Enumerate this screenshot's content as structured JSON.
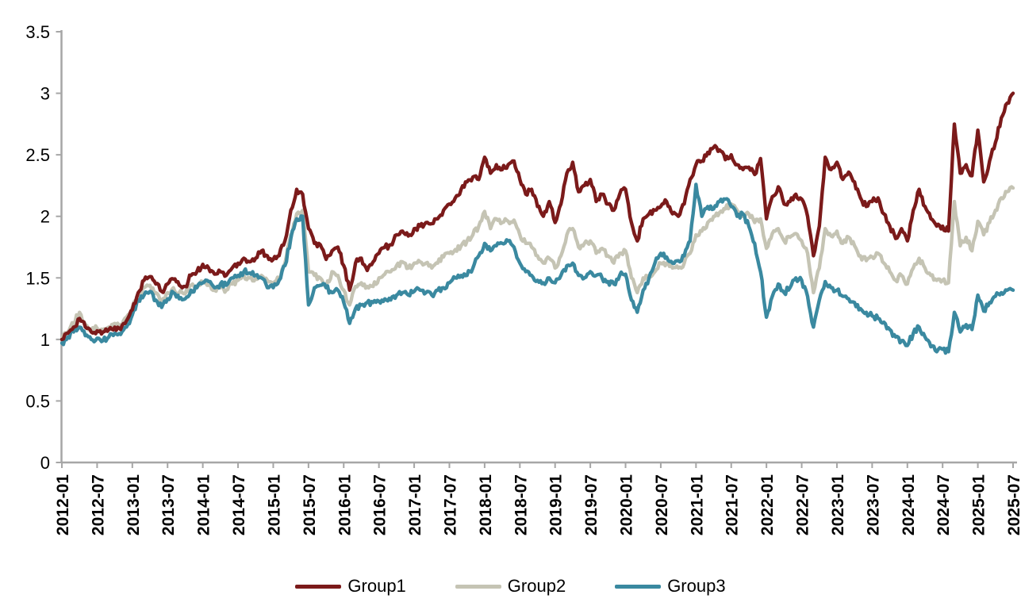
{
  "chart_data": {
    "type": "line",
    "title": "",
    "x_start": "2012-01",
    "x_step_months": 1,
    "x_end": "2025-07",
    "tick_labels": [
      "2012-01",
      "2012-07",
      "2013-01",
      "2013-07",
      "2014-01",
      "2014-07",
      "2015-01",
      "2015-07",
      "2016-01",
      "2016-07",
      "2017-01",
      "2017-07",
      "2018-01",
      "2018-07",
      "2019-01",
      "2019-07",
      "2020-01",
      "2020-07",
      "2021-01",
      "2021-07",
      "2022-01",
      "2022-07",
      "2023-01",
      "2023-07",
      "2024-01",
      "2024-07",
      "2025-01",
      "2025-07"
    ],
    "ytick_labels": [
      "0",
      "0.5",
      "1",
      "1.5",
      "2",
      "2.5",
      "3",
      "3.5"
    ],
    "ytick_values": [
      0,
      0.5,
      1,
      1.5,
      2,
      2.5,
      3,
      3.5
    ],
    "ylim": [
      0,
      3.5
    ],
    "grid": false,
    "legend_position": "bottom",
    "axis_color": "#a6a6a6",
    "text_color": "#000000",
    "background_color": "#ffffff",
    "series": [
      {
        "name": "Group1",
        "color": "#7B1A1A",
        "values": [
          1.0,
          1.05,
          1.1,
          1.17,
          1.1,
          1.06,
          1.07,
          1.06,
          1.08,
          1.1,
          1.08,
          1.15,
          1.24,
          1.38,
          1.48,
          1.51,
          1.45,
          1.39,
          1.45,
          1.49,
          1.44,
          1.43,
          1.52,
          1.55,
          1.61,
          1.58,
          1.53,
          1.55,
          1.52,
          1.58,
          1.62,
          1.66,
          1.63,
          1.66,
          1.72,
          1.68,
          1.65,
          1.68,
          1.8,
          2.05,
          2.22,
          2.18,
          1.9,
          1.78,
          1.77,
          1.65,
          1.72,
          1.75,
          1.6,
          1.4,
          1.62,
          1.66,
          1.56,
          1.63,
          1.7,
          1.75,
          1.77,
          1.85,
          1.88,
          1.84,
          1.9,
          1.92,
          1.95,
          1.94,
          1.98,
          2.05,
          2.1,
          2.15,
          2.22,
          2.28,
          2.32,
          2.3,
          2.48,
          2.35,
          2.42,
          2.38,
          2.42,
          2.45,
          2.3,
          2.18,
          2.22,
          2.08,
          2.0,
          2.12,
          1.95,
          2.1,
          2.35,
          2.44,
          2.2,
          2.25,
          2.3,
          2.12,
          2.18,
          2.1,
          2.05,
          2.18,
          2.22,
          1.95,
          1.8,
          1.98,
          2.02,
          2.05,
          2.08,
          2.12,
          2.02,
          2.0,
          2.1,
          2.3,
          2.42,
          2.45,
          2.52,
          2.56,
          2.54,
          2.46,
          2.5,
          2.42,
          2.38,
          2.4,
          2.34,
          2.47,
          1.98,
          2.16,
          2.24,
          2.1,
          2.12,
          2.18,
          2.14,
          2.0,
          1.68,
          1.92,
          2.48,
          2.38,
          2.44,
          2.3,
          2.36,
          2.28,
          2.15,
          2.08,
          2.12,
          2.15,
          2.02,
          1.92,
          1.82,
          1.9,
          1.8,
          2.05,
          2.22,
          2.08,
          1.98,
          1.92,
          1.92,
          1.88,
          2.75,
          2.35,
          2.42,
          2.33,
          2.7,
          2.28,
          2.45,
          2.6,
          2.8,
          2.92,
          3.0
        ]
      },
      {
        "name": "Group2",
        "color": "#C5C4B4",
        "values": [
          1.0,
          1.06,
          1.13,
          1.22,
          1.12,
          1.08,
          1.09,
          1.08,
          1.1,
          1.13,
          1.12,
          1.18,
          1.26,
          1.36,
          1.42,
          1.44,
          1.38,
          1.32,
          1.38,
          1.42,
          1.38,
          1.37,
          1.44,
          1.42,
          1.47,
          1.44,
          1.4,
          1.42,
          1.4,
          1.45,
          1.48,
          1.52,
          1.5,
          1.5,
          1.52,
          1.48,
          1.45,
          1.5,
          1.62,
          1.85,
          2.02,
          2.05,
          1.55,
          1.52,
          1.5,
          1.42,
          1.55,
          1.52,
          1.4,
          1.28,
          1.43,
          1.46,
          1.43,
          1.43,
          1.5,
          1.53,
          1.55,
          1.6,
          1.63,
          1.58,
          1.62,
          1.63,
          1.62,
          1.58,
          1.62,
          1.67,
          1.7,
          1.73,
          1.76,
          1.8,
          1.85,
          1.92,
          2.04,
          1.9,
          1.98,
          1.95,
          1.96,
          1.97,
          1.85,
          1.78,
          1.75,
          1.68,
          1.62,
          1.66,
          1.58,
          1.68,
          1.85,
          1.9,
          1.75,
          1.78,
          1.8,
          1.7,
          1.74,
          1.68,
          1.62,
          1.7,
          1.72,
          1.5,
          1.38,
          1.5,
          1.52,
          1.55,
          1.62,
          1.62,
          1.58,
          1.58,
          1.62,
          1.7,
          1.85,
          1.88,
          1.95,
          2.0,
          2.03,
          2.06,
          2.1,
          2.05,
          2.0,
          2.02,
          1.95,
          1.98,
          1.74,
          1.86,
          1.9,
          1.8,
          1.83,
          1.86,
          1.8,
          1.7,
          1.38,
          1.58,
          1.9,
          1.84,
          1.88,
          1.78,
          1.83,
          1.76,
          1.68,
          1.64,
          1.67,
          1.7,
          1.62,
          1.55,
          1.48,
          1.52,
          1.45,
          1.58,
          1.66,
          1.58,
          1.52,
          1.48,
          1.48,
          1.46,
          2.12,
          1.76,
          1.83,
          1.72,
          1.96,
          1.85,
          1.95,
          2.05,
          2.15,
          2.2,
          2.23
        ]
      },
      {
        "name": "Group3",
        "color": "#3A89A0",
        "values": [
          0.97,
          1.02,
          1.06,
          1.1,
          1.03,
          1.0,
          1.01,
          0.99,
          1.02,
          1.05,
          1.04,
          1.1,
          1.2,
          1.32,
          1.36,
          1.39,
          1.32,
          1.26,
          1.33,
          1.38,
          1.33,
          1.33,
          1.4,
          1.42,
          1.46,
          1.47,
          1.42,
          1.45,
          1.44,
          1.5,
          1.52,
          1.55,
          1.54,
          1.52,
          1.5,
          1.42,
          1.42,
          1.48,
          1.6,
          1.82,
          1.98,
          2.0,
          1.28,
          1.42,
          1.44,
          1.42,
          1.38,
          1.4,
          1.3,
          1.13,
          1.25,
          1.28,
          1.3,
          1.3,
          1.31,
          1.33,
          1.32,
          1.36,
          1.38,
          1.36,
          1.39,
          1.4,
          1.38,
          1.36,
          1.4,
          1.42,
          1.46,
          1.5,
          1.52,
          1.52,
          1.58,
          1.68,
          1.78,
          1.72,
          1.76,
          1.78,
          1.8,
          1.75,
          1.62,
          1.55,
          1.52,
          1.48,
          1.46,
          1.5,
          1.46,
          1.52,
          1.6,
          1.62,
          1.52,
          1.5,
          1.55,
          1.52,
          1.5,
          1.47,
          1.45,
          1.52,
          1.53,
          1.32,
          1.22,
          1.4,
          1.5,
          1.62,
          1.7,
          1.67,
          1.62,
          1.64,
          1.68,
          1.8,
          2.26,
          2.0,
          2.08,
          2.06,
          2.12,
          2.14,
          2.08,
          2.0,
          2.02,
          1.92,
          1.78,
          1.55,
          1.18,
          1.35,
          1.45,
          1.38,
          1.42,
          1.5,
          1.48,
          1.35,
          1.1,
          1.32,
          1.47,
          1.42,
          1.4,
          1.35,
          1.33,
          1.3,
          1.25,
          1.22,
          1.19,
          1.17,
          1.14,
          1.08,
          1.02,
          0.99,
          0.95,
          1.05,
          1.1,
          1.02,
          0.94,
          0.9,
          0.92,
          0.9,
          1.22,
          1.06,
          1.12,
          1.08,
          1.36,
          1.23,
          1.3,
          1.35,
          1.38,
          1.4,
          1.4
        ]
      }
    ]
  }
}
